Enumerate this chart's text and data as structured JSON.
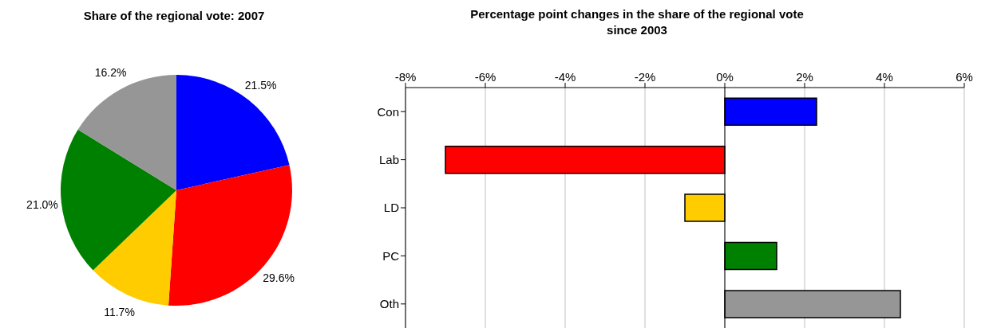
{
  "chart_data": [
    {
      "type": "pie",
      "title": "Share of the regional vote: 2007",
      "categories": [
        null,
        null,
        null,
        null,
        null
      ],
      "values": [
        21.5,
        29.6,
        11.7,
        21.0,
        16.2
      ],
      "colors": [
        "#0000ff",
        "#ff0000",
        "#ffcc00",
        "#008000",
        "#969696"
      ],
      "value_labels": [
        "21.5%",
        "29.6%",
        "11.7%",
        "21.0%",
        "16.2%"
      ]
    },
    {
      "type": "bar",
      "orientation": "horizontal",
      "title": "Percentage point changes in the share of the regional vote since 2003",
      "categories": [
        "Con",
        "Lab",
        "LD",
        "PC",
        "Oth"
      ],
      "values": [
        2.3,
        -7.0,
        -1.0,
        1.3,
        4.4
      ],
      "colors": [
        "#0000ff",
        "#ff0000",
        "#ffcc00",
        "#008000",
        "#969696"
      ],
      "xlim": [
        -8,
        6
      ],
      "xticks": [
        {
          "value": -8,
          "label": "-8%"
        },
        {
          "value": -6,
          "label": "-6%"
        },
        {
          "value": -4,
          "label": "-4%"
        },
        {
          "value": -2,
          "label": "-2%"
        },
        {
          "value": 0,
          "label": "0%"
        },
        {
          "value": 2,
          "label": "2%"
        },
        {
          "value": 4,
          "label": "4%"
        },
        {
          "value": 6,
          "label": "6%"
        }
      ],
      "grid": "x"
    }
  ]
}
